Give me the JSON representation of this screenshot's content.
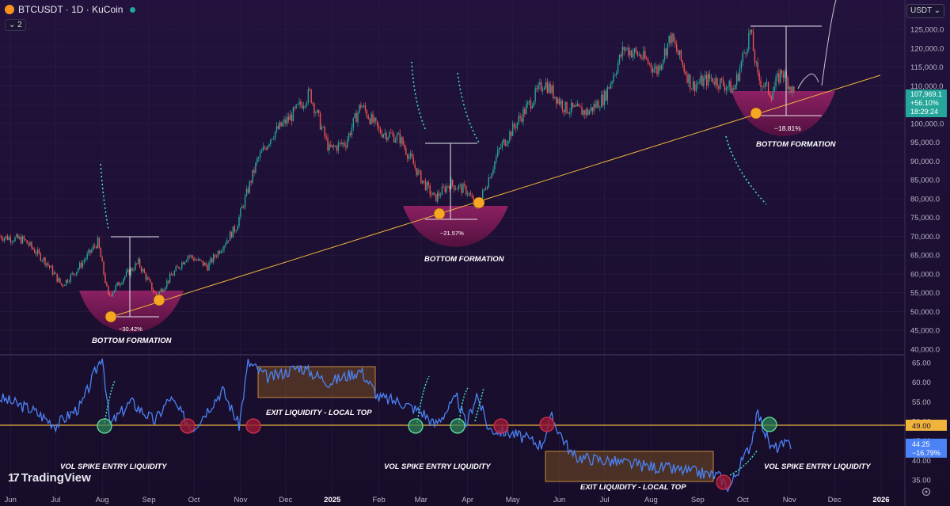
{
  "header": {
    "title": "BTCUSDT · 1D · KuCoin",
    "layers": "2"
  },
  "currency_selector": "USDT",
  "brand": "TradingView",
  "chart_data": [
    {
      "type": "candlestick",
      "name": "price",
      "x_ticks": [
        "Jun",
        "Jul",
        "Aug",
        "Sep",
        "Oct",
        "Nov",
        "Dec",
        "2025",
        "Feb",
        "Mar",
        "Apr",
        "May",
        "Jun",
        "Jul",
        "Aug",
        "Sep",
        "Oct",
        "Nov",
        "Dec",
        "2026"
      ],
      "y_ticks": [
        40000,
        45000,
        50000,
        55000,
        60000,
        65000,
        70000,
        75000,
        80000,
        85000,
        90000,
        95000,
        100000,
        105000,
        110000,
        115000,
        120000,
        125000
      ],
      "ylim": [
        39000,
        128500
      ],
      "x": [
        "2024-05-25",
        "2024-06-10",
        "2024-06-25",
        "2024-07-05",
        "2024-07-15",
        "2024-07-29",
        "2024-08-05",
        "2024-08-15",
        "2024-08-25",
        "2024-09-06",
        "2024-09-15",
        "2024-09-27",
        "2024-10-10",
        "2024-10-29",
        "2024-11-12",
        "2024-11-22",
        "2024-12-05",
        "2024-12-17",
        "2024-12-30",
        "2025-01-10",
        "2025-01-20",
        "2025-02-01",
        "2025-02-15",
        "2025-02-28",
        "2025-03-10",
        "2025-03-20",
        "2025-04-01",
        "2025-04-07",
        "2025-04-22",
        "2025-05-10",
        "2025-05-22",
        "2025-06-05",
        "2025-06-20",
        "2025-07-01",
        "2025-07-14",
        "2025-07-25",
        "2025-08-05",
        "2025-08-14",
        "2025-08-28",
        "2025-09-10",
        "2025-09-25",
        "2025-10-06",
        "2025-10-11",
        "2025-10-20",
        "2025-10-27",
        "2025-11-04"
      ],
      "values": [
        70000,
        69000,
        63000,
        57000,
        61000,
        68500,
        54000,
        59000,
        63000,
        54000,
        59000,
        65000,
        62000,
        72500,
        90000,
        97000,
        102000,
        108000,
        93000,
        95000,
        105000,
        98000,
        96000,
        86000,
        80000,
        84000,
        82000,
        77000,
        93000,
        104000,
        111000,
        104000,
        103000,
        107000,
        120000,
        118000,
        114000,
        123000,
        110000,
        112000,
        109000,
        124500,
        112000,
        108000,
        114000,
        107969.1
      ]
    },
    {
      "type": "line",
      "name": "volatility",
      "y_ticks": [
        35,
        40,
        45,
        50,
        55,
        60,
        65
      ],
      "ylim": [
        32,
        67
      ],
      "x": [
        "2024-05-25",
        "2024-06-15",
        "2024-07-01",
        "2024-07-18",
        "2024-08-01",
        "2024-08-06",
        "2024-08-20",
        "2024-09-05",
        "2024-09-15",
        "2024-09-30",
        "2024-10-20",
        "2024-10-31",
        "2024-11-06",
        "2024-11-20",
        "2024-12-10",
        "2024-12-30",
        "2025-01-20",
        "2025-02-01",
        "2025-02-15",
        "2025-03-03",
        "2025-03-10",
        "2025-03-25",
        "2025-03-31",
        "2025-04-07",
        "2025-04-15",
        "2025-04-30",
        "2025-05-20",
        "2025-05-27",
        "2025-06-10",
        "2025-07-01",
        "2025-07-20",
        "2025-08-10",
        "2025-08-30",
        "2025-09-15",
        "2025-09-22",
        "2025-10-06",
        "2025-10-11",
        "2025-10-20",
        "2025-11-02"
      ],
      "values": [
        56,
        53,
        49,
        54,
        67,
        49,
        55,
        50,
        56,
        48,
        58,
        49,
        65,
        61,
        64,
        60,
        63,
        56,
        55,
        52,
        49,
        56,
        49,
        57,
        48,
        47,
        44,
        51,
        41,
        40,
        39,
        38,
        37,
        36,
        33,
        44,
        52,
        43,
        44.25
      ]
    }
  ],
  "price_axis": {
    "current": "107,969.1",
    "change": "+56.10%",
    "countdown": "18:29:24"
  },
  "vol_axis": {
    "level": "49.00",
    "current": "44.25",
    "change": "−16.79%"
  },
  "annotations": {
    "bottom1": "BOTTOM FORMATION",
    "pct1": "−30.42%",
    "bottom2": "BOTTOM FORMATION",
    "pct2": "−21.57%",
    "bottom3": "BOTTOM FORMATION",
    "pct3": "−18.81%",
    "exit_top": "EXIT LIQUIDITY - LOCAL TOP",
    "exit_bottom": "EXIT LIQUIDITY - LOCAL TOP",
    "vol1": "VOL SPIKE ENTRY LIQUIDITY",
    "vol2": "VOL SPIKE ENTRY LIQUIDITY",
    "vol3": "VOL SPIKE ENTRY LIQUIDITY"
  },
  "colors": {
    "up": "#26a69a",
    "down": "#ef5350",
    "trend": "#f0b43c",
    "vol": "#4b82f5",
    "bowl": "#8b1e5a",
    "box": "#7a5520"
  }
}
